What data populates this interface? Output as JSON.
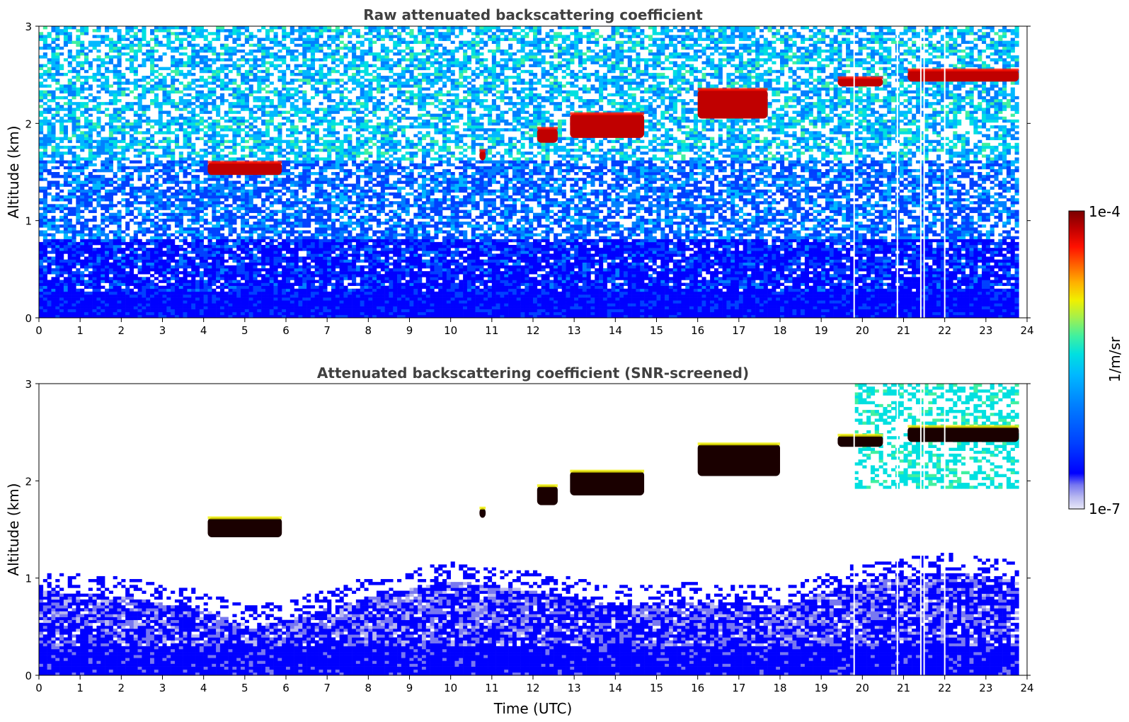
{
  "chart_data": [
    {
      "type": "heatmap",
      "title": "Raw attenuated backscattering coefficient",
      "xlabel": "",
      "ylabel": "Altitude (km)",
      "xlim": [
        0,
        24
      ],
      "ylim": [
        0,
        3
      ],
      "xticks": [
        "0",
        "1",
        "2",
        "3",
        "4",
        "5",
        "6",
        "7",
        "8",
        "9",
        "10",
        "11",
        "12",
        "13",
        "14",
        "15",
        "16",
        "17",
        "18",
        "19",
        "20",
        "21",
        "22",
        "23",
        "24"
      ],
      "yticks": [
        "0",
        "1",
        "2",
        "3"
      ],
      "data_extent_hours": [
        0,
        23.8
      ],
      "missing_profiles_hours": [
        19.8,
        20.85,
        21.42,
        21.5,
        22.0
      ],
      "background": "noisy; saturated blue below ~0.4 km grading to cyan/green noise above 2 km",
      "cloud_layers": [
        {
          "start": 4.1,
          "end": 5.9,
          "base_km": 1.47,
          "top_km": 1.6
        },
        {
          "start": 10.7,
          "end": 10.85,
          "base_km": 1.62,
          "top_km": 1.72
        },
        {
          "start": 12.1,
          "end": 12.6,
          "base_km": 1.8,
          "top_km": 1.95
        },
        {
          "start": 12.9,
          "end": 14.7,
          "base_km": 1.85,
          "top_km": 2.1
        },
        {
          "start": 16.0,
          "end": 17.7,
          "base_km": 2.05,
          "top_km": 2.35
        },
        {
          "start": 19.4,
          "end": 20.5,
          "base_km": 2.38,
          "top_km": 2.47
        },
        {
          "start": 21.1,
          "end": 23.8,
          "base_km": 2.43,
          "top_km": 2.55
        }
      ]
    },
    {
      "type": "heatmap",
      "title": "Attenuated backscattering coefficient (SNR-screened)",
      "xlabel": "Time (UTC)",
      "ylabel": "Altitude (km)",
      "xlim": [
        0,
        24
      ],
      "ylim": [
        0,
        3
      ],
      "xticks": [
        "0",
        "1",
        "2",
        "3",
        "4",
        "5",
        "6",
        "7",
        "8",
        "9",
        "10",
        "11",
        "12",
        "13",
        "14",
        "15",
        "16",
        "17",
        "18",
        "19",
        "20",
        "21",
        "22",
        "23",
        "24"
      ],
      "yticks": [
        "0",
        "1",
        "2",
        "3"
      ],
      "data_extent_hours": [
        0,
        23.8
      ],
      "missing_profiles_hours": [
        19.8,
        20.85,
        21.42,
        21.5,
        22.0
      ],
      "boundary_layer_top_km": [
        {
          "t": 0,
          "km": 0.85
        },
        {
          "t": 2,
          "km": 0.8
        },
        {
          "t": 4,
          "km": 0.65
        },
        {
          "t": 5,
          "km": 0.5
        },
        {
          "t": 6,
          "km": 0.55
        },
        {
          "t": 8,
          "km": 0.8
        },
        {
          "t": 10,
          "km": 0.95
        },
        {
          "t": 12,
          "km": 0.85
        },
        {
          "t": 14,
          "km": 0.7
        },
        {
          "t": 16,
          "km": 0.75
        },
        {
          "t": 18,
          "km": 0.7
        },
        {
          "t": 20,
          "km": 0.95
        },
        {
          "t": 22,
          "km": 1.05
        },
        {
          "t": 23.8,
          "km": 0.95
        }
      ],
      "cloud_layers": [
        {
          "start": 4.1,
          "end": 5.9,
          "base_km": 1.42,
          "top_km": 1.62
        },
        {
          "start": 10.7,
          "end": 10.85,
          "base_km": 1.62,
          "top_km": 1.72
        },
        {
          "start": 12.1,
          "end": 12.6,
          "base_km": 1.75,
          "top_km": 1.95
        },
        {
          "start": 12.9,
          "end": 14.7,
          "base_km": 1.85,
          "top_km": 2.1
        },
        {
          "start": 16.0,
          "end": 18.0,
          "base_km": 2.05,
          "top_km": 2.38
        },
        {
          "start": 19.4,
          "end": 20.5,
          "base_km": 2.35,
          "top_km": 2.47
        },
        {
          "start": 21.1,
          "end": 23.8,
          "base_km": 2.4,
          "top_km": 2.56
        }
      ],
      "virga_below_cloud": {
        "start": 19.8,
        "end": 23.8,
        "bottom_km": 1.9
      }
    }
  ],
  "colorbar": {
    "label": "1/m/sr",
    "max_label": "1e-4",
    "min_label": "1e-7",
    "scale": "log",
    "range": [
      1e-07,
      0.0001
    ],
    "colors": [
      "#e8e8f8",
      "#b8b8f0",
      "#7878f0",
      "#0000ff",
      "#0040ff",
      "#0080ff",
      "#00b8ff",
      "#00e0e0",
      "#40f0a0",
      "#a0f050",
      "#f0f000",
      "#ffb000",
      "#ff6000",
      "#ff1000",
      "#c00000",
      "#7a0000"
    ]
  }
}
